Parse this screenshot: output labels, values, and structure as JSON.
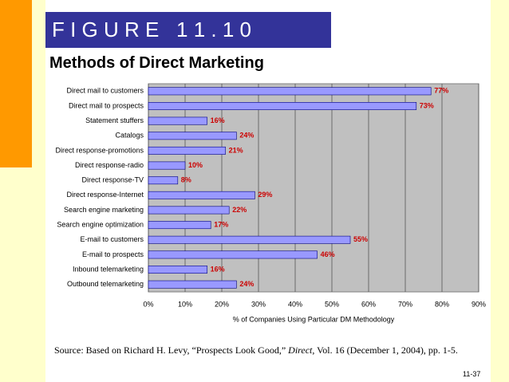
{
  "header": {
    "figure": "F I G U R E   1 1 . 1 0",
    "title": "Methods of Direct Marketing"
  },
  "chart_data": {
    "type": "barh",
    "categories": [
      "Direct mail to customers",
      "Direct mail to prospects",
      "Statement stuffers",
      "Catalogs",
      "Direct response-promotions",
      "Direct response-radio",
      "Direct response-TV",
      "Direct response-Internet",
      "Search engine marketing",
      "Search engine optimization",
      "E-mail to customers",
      "E-mail to prospects",
      "Inbound telemarketing",
      "Outbound telemarketing"
    ],
    "values": [
      77,
      73,
      16,
      24,
      21,
      10,
      8,
      29,
      22,
      17,
      55,
      46,
      16,
      24
    ],
    "value_labels": [
      "77%",
      "73%",
      "16%",
      "24%",
      "21%",
      "10%",
      "8%",
      "29%",
      "22%",
      "17%",
      "55%",
      "46%",
      "16%",
      "24%"
    ],
    "color": "#9999ff",
    "xlim": [
      0,
      90
    ],
    "xticks": [
      {
        "value": 0,
        "label": "0%"
      },
      {
        "value": 10,
        "label": "10%"
      },
      {
        "value": 20,
        "label": "20%"
      },
      {
        "value": 30,
        "label": "30%"
      },
      {
        "value": 40,
        "label": "40%"
      },
      {
        "value": 50,
        "label": "50%"
      },
      {
        "value": 60,
        "label": "60%"
      },
      {
        "value": 70,
        "label": "70%"
      },
      {
        "value": 80,
        "label": "80%"
      },
      {
        "value": 90,
        "label": "90%"
      }
    ],
    "xlabel": "% of Companies Using Particular DM Methodology",
    "grid": true
  },
  "footer": {
    "source": [
      "Source: Based on Richard H. Levy, “Prospects Look Good,” ",
      "Direct",
      ", Vol. 16 (December 1, 2004), pp. 1-5."
    ],
    "page": "11-37"
  }
}
